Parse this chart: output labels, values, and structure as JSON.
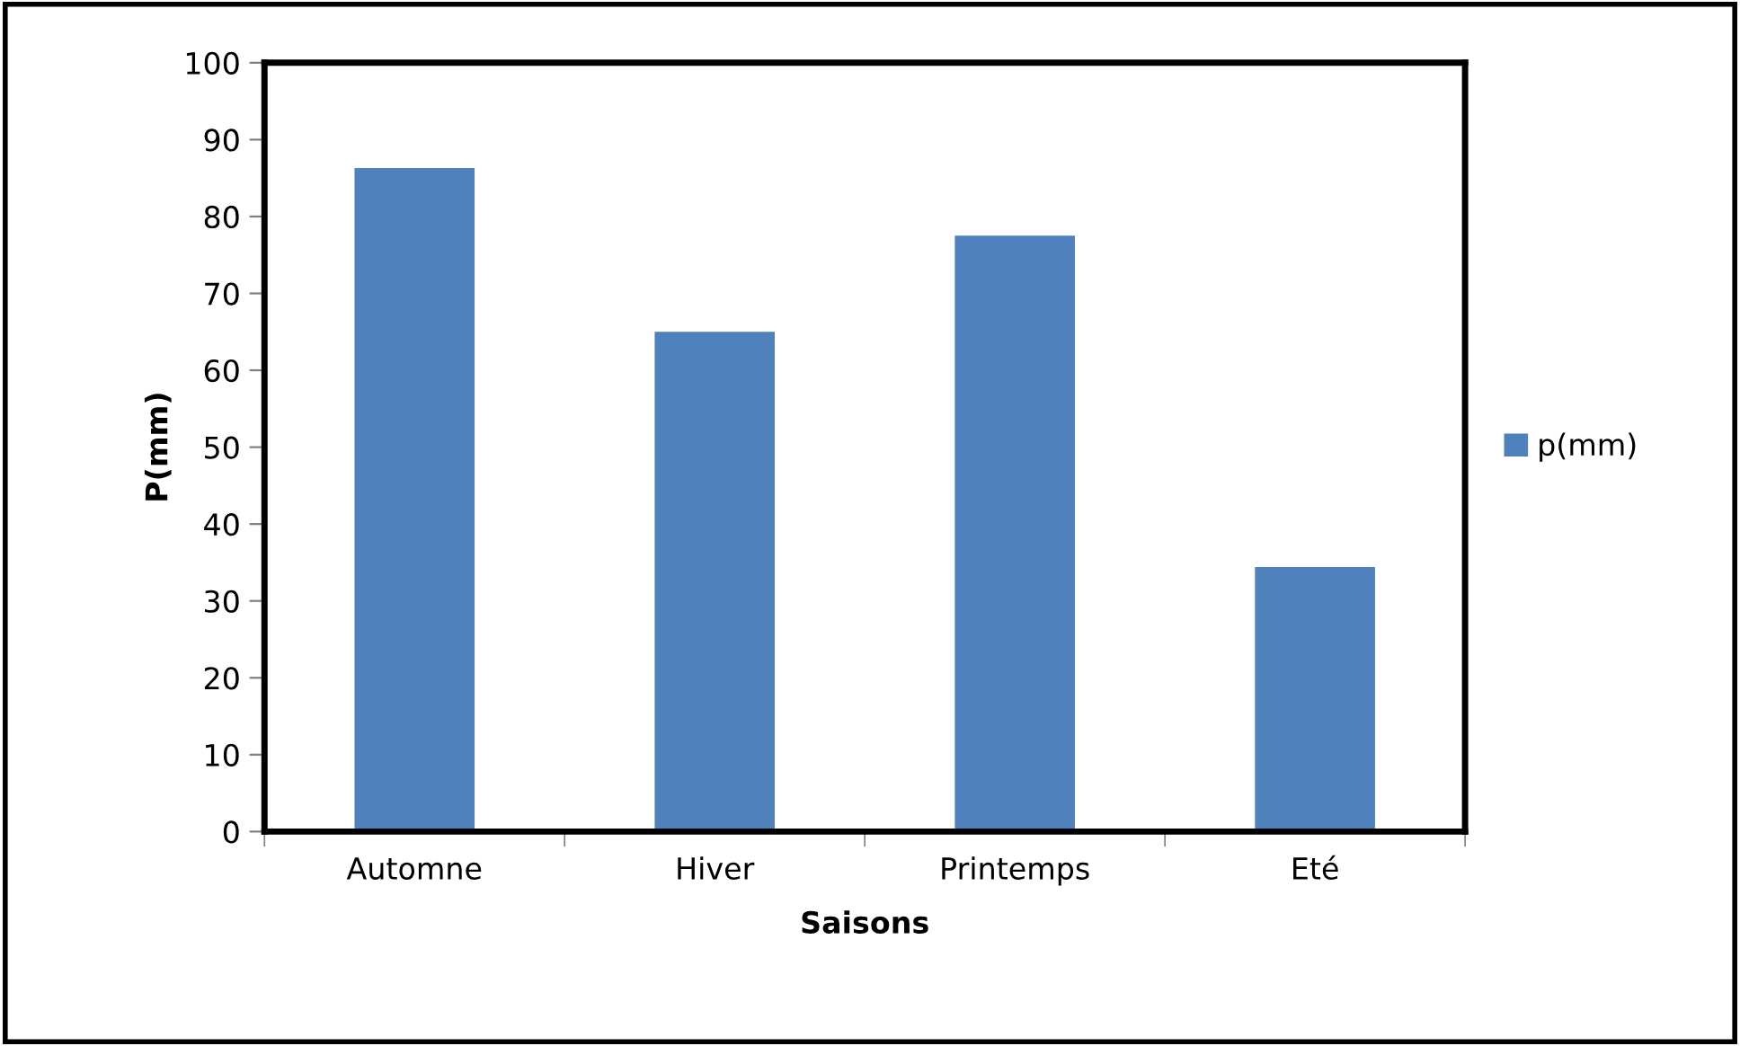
{
  "chart_data": {
    "type": "bar",
    "xlabel": "Saisons",
    "ylabel": "P(mm)",
    "categories": [
      "Automne",
      "Hiver",
      "Printemps",
      "Eté"
    ],
    "series": [
      {
        "name": "p(mm)",
        "color": "#4f81bd",
        "values": [
          86.3,
          65.0,
          77.5,
          34.4
        ]
      }
    ],
    "ylim": [
      0,
      100
    ],
    "yticks": [
      0,
      10,
      20,
      30,
      40,
      50,
      60,
      70,
      80,
      90,
      100
    ],
    "grid": false,
    "legend": "right"
  }
}
